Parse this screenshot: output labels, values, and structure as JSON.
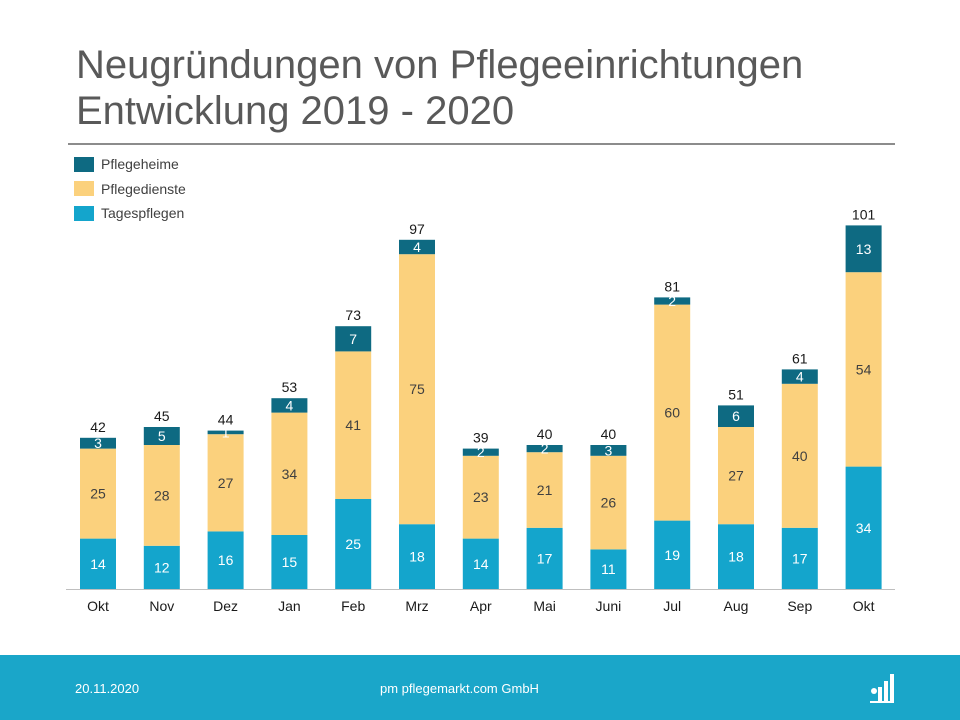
{
  "title_line1": "Neugründungen von Pflegeeinrichtungen",
  "title_line2": "Entwicklung 2019 - 2020",
  "footer": {
    "date": "20.11.2020",
    "company": "pm pflegemarkt.com GmbH",
    "logo_icon": "pflegemarkt-logo-icon"
  },
  "colors": {
    "Pflegeheime": "#0e6a82",
    "Pflegedienste": "#fbd17d",
    "Tagespflegen": "#14a5cc",
    "footer": "#1aa6c9"
  },
  "chart_data": {
    "type": "bar",
    "stacked": true,
    "title": "Neugründungen von Pflegeeinrichtungen Entwicklung 2019 - 2020",
    "xlabel": "",
    "ylabel": "",
    "grid": false,
    "legend_position": "top-left",
    "categories": [
      "Okt",
      "Nov",
      "Dez",
      "Jan",
      "Feb",
      "Mrz",
      "Apr",
      "Mai",
      "Juni",
      "Jul",
      "Aug",
      "Sep",
      "Okt"
    ],
    "series": [
      {
        "name": "Tagespflegen",
        "color": "#14a5cc",
        "values": [
          14,
          12,
          16,
          15,
          25,
          18,
          14,
          17,
          11,
          19,
          18,
          17,
          34
        ]
      },
      {
        "name": "Pflegedienste",
        "color": "#fbd17d",
        "values": [
          25,
          28,
          27,
          34,
          41,
          75,
          23,
          21,
          26,
          60,
          27,
          40,
          54
        ]
      },
      {
        "name": "Pflegeheime",
        "color": "#0e6a82",
        "values": [
          3,
          5,
          1,
          4,
          7,
          4,
          2,
          2,
          3,
          2,
          6,
          4,
          13
        ]
      }
    ],
    "totals": [
      42,
      45,
      44,
      53,
      73,
      97,
      39,
      40,
      40,
      81,
      51,
      61,
      101
    ],
    "legend_order": [
      "Pflegeheime",
      "Pflegedienste",
      "Tagespflegen"
    ],
    "ylim": [
      0,
      101
    ]
  }
}
